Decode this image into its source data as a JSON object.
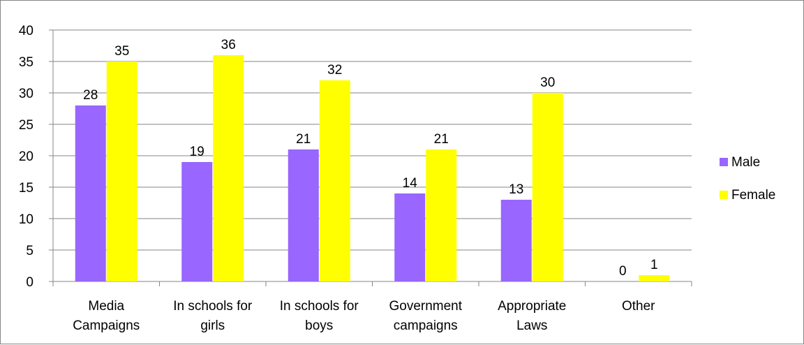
{
  "chart_data": {
    "type": "bar",
    "categories": [
      [
        "Media",
        "Campaigns"
      ],
      [
        "In schools for",
        "girls"
      ],
      [
        "In schools for",
        "boys"
      ],
      [
        "Government",
        "campaigns"
      ],
      [
        "Appropriate",
        "Laws"
      ],
      [
        "Other"
      ]
    ],
    "series": [
      {
        "name": "Male",
        "color": "#9966FF",
        "values": [
          28,
          19,
          21,
          14,
          13,
          0
        ]
      },
      {
        "name": "Female",
        "color": "#FFFF00",
        "values": [
          35,
          36,
          32,
          21,
          30,
          1
        ]
      }
    ],
    "ylim": [
      0,
      40
    ],
    "yticks": [
      0,
      5,
      10,
      15,
      20,
      25,
      30,
      35,
      40
    ],
    "grid": true,
    "data_labels": true,
    "legend_position": "right",
    "title": "",
    "xlabel": "",
    "ylabel": ""
  }
}
